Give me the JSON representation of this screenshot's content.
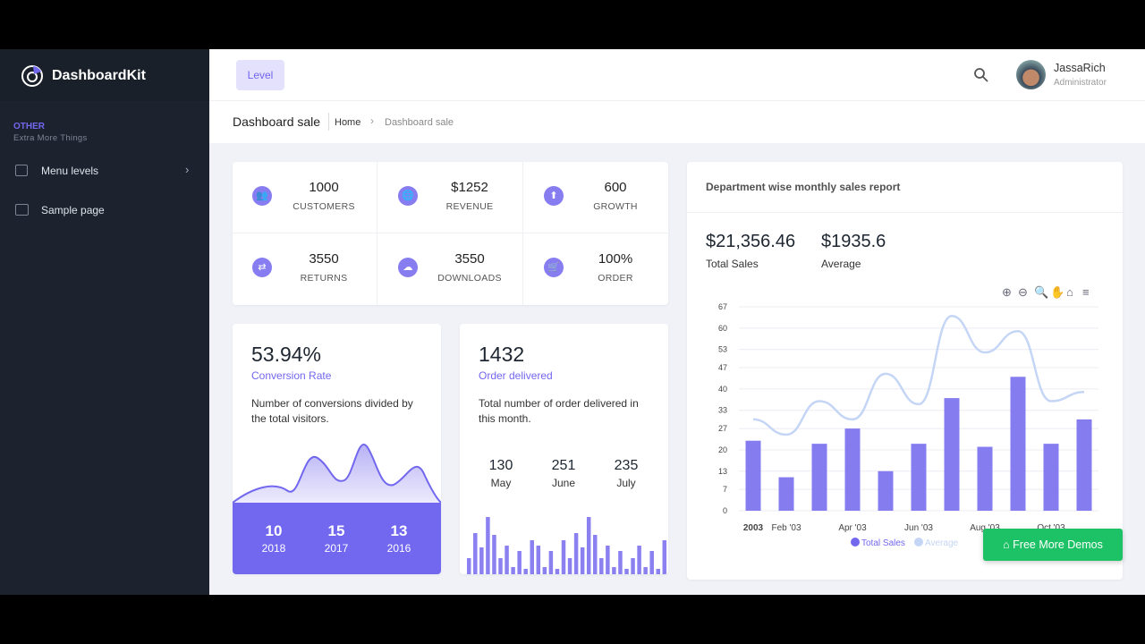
{
  "brand": {
    "name": "DashboardKit"
  },
  "sidebar": {
    "section_title": "OTHER",
    "section_subtitle": "Extra More Things",
    "items": [
      {
        "label": "Menu levels",
        "icon": "list-icon",
        "has_children": true
      },
      {
        "label": "Sample page",
        "icon": "store-icon"
      }
    ]
  },
  "header": {
    "level_button": "Level",
    "user": {
      "name": "JassaRich",
      "role": "Administrator"
    }
  },
  "breadcrumb": {
    "title": "Dashboard sale",
    "items": [
      "Home",
      "Dashboard sale"
    ]
  },
  "stats": [
    {
      "value": "1000",
      "label": "CUSTOMERS",
      "icon": "users-icon"
    },
    {
      "value": "$1252",
      "label": "REVENUE",
      "icon": "globe-icon"
    },
    {
      "value": "600",
      "label": "GROWTH",
      "icon": "archive-up-icon"
    },
    {
      "value": "3550",
      "label": "RETURNS",
      "icon": "exchange-icon"
    },
    {
      "value": "3550",
      "label": "DOWNLOADS",
      "icon": "cloud-download-icon"
    },
    {
      "value": "100%",
      "label": "ORDER",
      "icon": "cart-icon"
    }
  ],
  "conversion": {
    "value": "53.94%",
    "label": "Conversion Rate",
    "description": "Number of conversions divided by the total visitors.",
    "footer": [
      {
        "value": "10",
        "year": "2018"
      },
      {
        "value": "15",
        "year": "2017"
      },
      {
        "value": "13",
        "year": "2016"
      }
    ]
  },
  "orders": {
    "value": "1432",
    "label": "Order delivered",
    "description": "Total number of order delivered in this month.",
    "months": [
      {
        "value": "130",
        "month": "May"
      },
      {
        "value": "251",
        "month": "June"
      },
      {
        "value": "235",
        "month": "July"
      }
    ],
    "sparkline": [
      18,
      46,
      30,
      64,
      44,
      18,
      32,
      8,
      26,
      6,
      38,
      32,
      8,
      26,
      6,
      38,
      18,
      46,
      30,
      64,
      44,
      18,
      32,
      8,
      26,
      6,
      18,
      32,
      8,
      26,
      6,
      38
    ]
  },
  "sales_report": {
    "title": "Department wise monthly sales report",
    "total_sales": {
      "value": "$21,356.46",
      "label": "Total Sales"
    },
    "average": {
      "value": "$1935.6",
      "label": "Average"
    },
    "toolbar": [
      "zoom-in-icon",
      "zoom-out-icon",
      "zoom-select-icon",
      "pan-icon",
      "home-icon",
      "menu-icon"
    ]
  },
  "chart_data": {
    "type": "bar",
    "x_labels": [
      "2003",
      "Feb '03",
      "Apr '03",
      "Jun '03",
      "Aug '03",
      "Oct '03"
    ],
    "yticks": [
      0,
      7,
      13,
      20,
      27,
      33,
      40,
      47,
      53,
      60,
      67
    ],
    "ylim": [
      0,
      67
    ],
    "legend_position": "bottom",
    "series": [
      {
        "name": "Total Sales",
        "type": "bar",
        "color": "#7267ef",
        "values": [
          23,
          11,
          22,
          27,
          13,
          22,
          37,
          21,
          44,
          22,
          30
        ]
      },
      {
        "name": "Average",
        "type": "line",
        "color": "#c5d5f5",
        "values": [
          30,
          25,
          36,
          30,
          45,
          35,
          64,
          52,
          59,
          36,
          39
        ]
      }
    ]
  },
  "promo_button": {
    "label": "Free More Demos",
    "color": "#1ec266"
  }
}
